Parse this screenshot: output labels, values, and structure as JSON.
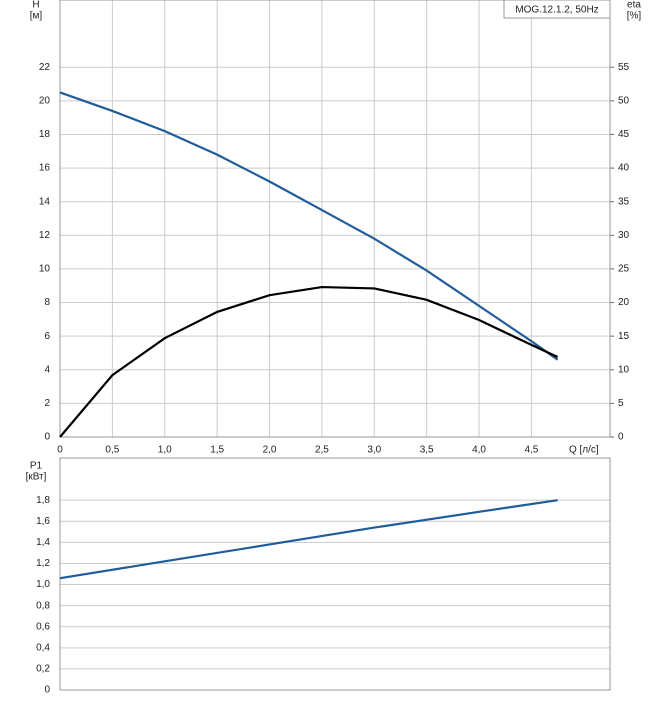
{
  "chart_data": [
    {
      "type": "line",
      "legend_label": "MOG.12.1.2, 50Hz",
      "y_label": "H",
      "y_unit": "[м]",
      "y2_label": "eta",
      "y2_unit": "[%]",
      "x_label": "Q [л/с]",
      "x": [
        0,
        0.5,
        1.0,
        1.5,
        2.0,
        2.5,
        3.0,
        3.5,
        4.0,
        4.5,
        4.75
      ],
      "series": [
        {
          "name": "H",
          "color": "#1f5c99",
          "values": [
            20.5,
            19.4,
            18.2,
            16.8,
            15.2,
            13.5,
            11.8,
            9.9,
            7.8,
            5.7,
            4.6
          ]
        },
        {
          "name": "eta",
          "color": "#000000",
          "axis": "y2",
          "values": [
            0,
            9.2,
            14.7,
            18.6,
            21.1,
            22.3,
            22.1,
            20.4,
            17.4,
            13.7,
            11.9
          ]
        }
      ],
      "xlim": [
        0,
        5.25
      ],
      "xticks": [
        0,
        {
          "value": 0.5,
          "label": "0,5"
        },
        {
          "value": 1.0,
          "label": "1,0"
        },
        {
          "value": 1.5,
          "label": "1,5"
        },
        {
          "value": 2.0,
          "label": "2,0"
        },
        {
          "value": 2.5,
          "label": "2,5"
        },
        {
          "value": 3.0,
          "label": "3,0"
        },
        {
          "value": 3.5,
          "label": "3,5"
        },
        {
          "value": 4.0,
          "label": "4,0"
        },
        {
          "value": 4.5,
          "label": "4,5"
        }
      ],
      "ylim": [
        0,
        26
      ],
      "yticks": [
        0,
        2,
        4,
        6,
        8,
        10,
        12,
        14,
        16,
        18,
        20,
        22
      ],
      "y2lim": [
        0,
        65
      ],
      "y2ticks": [
        0,
        5,
        10,
        15,
        20,
        25,
        30,
        35,
        40,
        45,
        50,
        55
      ],
      "grid": true
    },
    {
      "type": "line",
      "y_label": "P1",
      "y_unit": "[кВт]",
      "x": [
        0,
        1,
        2,
        3,
        4,
        4.75
      ],
      "series": [
        {
          "name": "P1",
          "color": "#1f5c99",
          "values": [
            1.06,
            1.22,
            1.38,
            1.54,
            1.69,
            1.8
          ]
        }
      ],
      "xlim": [
        0,
        5.25
      ],
      "ylim": [
        0,
        2.2
      ],
      "yticks": [
        0,
        {
          "value": 0.2,
          "label": "0,2"
        },
        {
          "value": 0.4,
          "label": "0,4"
        },
        {
          "value": 0.6,
          "label": "0,6"
        },
        {
          "value": 0.8,
          "label": "0,8"
        },
        {
          "value": 1.0,
          "label": "1,0"
        },
        {
          "value": 1.2,
          "label": "1,2"
        },
        {
          "value": 1.4,
          "label": "1,4"
        },
        {
          "value": 1.6,
          "label": "1,6"
        },
        {
          "value": 1.8,
          "label": "1,8"
        }
      ],
      "grid": true
    }
  ]
}
